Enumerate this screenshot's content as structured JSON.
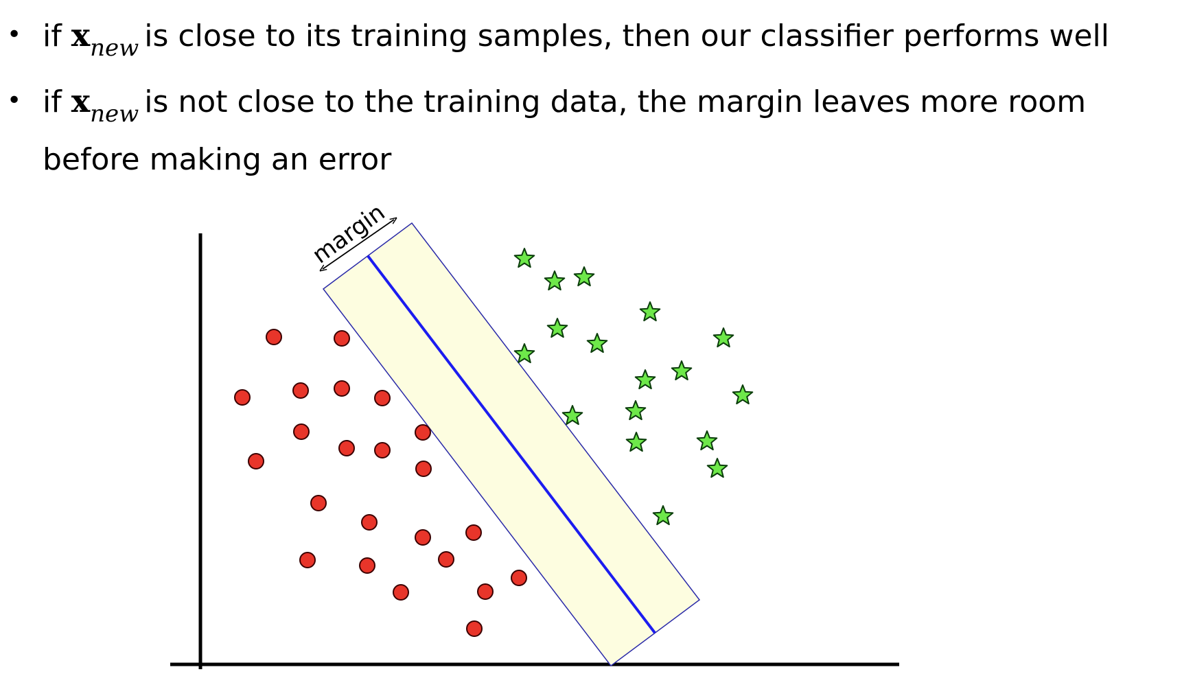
{
  "bullets": [
    {
      "symbol": "x",
      "subscript": "new",
      "before": "if",
      "after": "is close to its training samples, then our classifier performs well"
    },
    {
      "symbol": "x",
      "subscript": "new",
      "before": "if",
      "after": "is not close to the training data, the margin leaves more room",
      "continuation": "before making an error"
    }
  ],
  "diagram": {
    "margin_label": "margin",
    "colors": {
      "axis": "#000000",
      "margin_fill": "#fdfde0",
      "margin_border": "#2a2aa8",
      "decision_line": "#1c1cf0",
      "circle_fill": "#e8352a",
      "circle_stroke": "#3a0000",
      "star_fill": "#6ee84a",
      "star_stroke": "#0b3d0b"
    },
    "class_a_marker": "red-circle",
    "class_b_marker": "green-star"
  }
}
